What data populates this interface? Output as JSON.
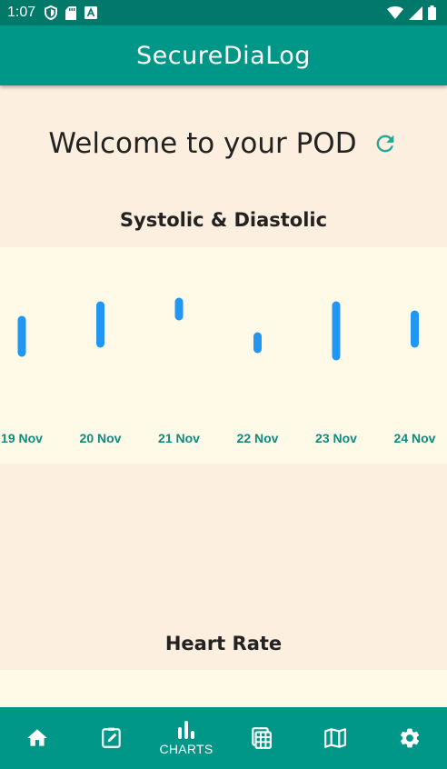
{
  "status_bar": {
    "time": "1:07",
    "left_icons": [
      "shield-icon",
      "sd-card-icon",
      "text-a-icon"
    ],
    "right_icons": [
      "wifi-icon",
      "signal-icon",
      "battery-icon"
    ]
  },
  "app_bar": {
    "title": "SecureDiaLog"
  },
  "welcome": {
    "text": "Welcome to your POD",
    "refresh_icon": "refresh-icon"
  },
  "blood_pressure": {
    "title": "Systolic & Diastolic"
  },
  "heart_rate": {
    "title": "Heart Rate"
  },
  "chart_data": [
    {
      "type": "bar",
      "categories": [
        "19 Nov",
        "20 Nov",
        "21 Nov",
        "22 Nov",
        "23 Nov",
        "24 Nov"
      ],
      "series": [
        {
          "low": [
            90,
            95,
            110,
            92,
            88,
            95
          ],
          "high": [
            112,
            120,
            122,
            103,
            120,
            115
          ]
        }
      ],
      "ylim": [
        70,
        135
      ],
      "grid": false,
      "bar_color": "#2196f3",
      "tick_color": "#0e8a7f"
    }
  ],
  "bottom_nav": {
    "items": [
      {
        "name": "home",
        "icon": "home-icon"
      },
      {
        "name": "journal",
        "icon": "edit-icon"
      },
      {
        "name": "charts",
        "icon": "chart-icon",
        "label": "CHARTS"
      },
      {
        "name": "table",
        "icon": "table-icon"
      },
      {
        "name": "map",
        "icon": "map-icon"
      },
      {
        "name": "settings",
        "icon": "gear-icon"
      }
    ]
  },
  "colors": {
    "primary": "#009688",
    "primary_dark": "#00796b",
    "background": "#fdefdf",
    "chart_bg": "#fffae8"
  }
}
